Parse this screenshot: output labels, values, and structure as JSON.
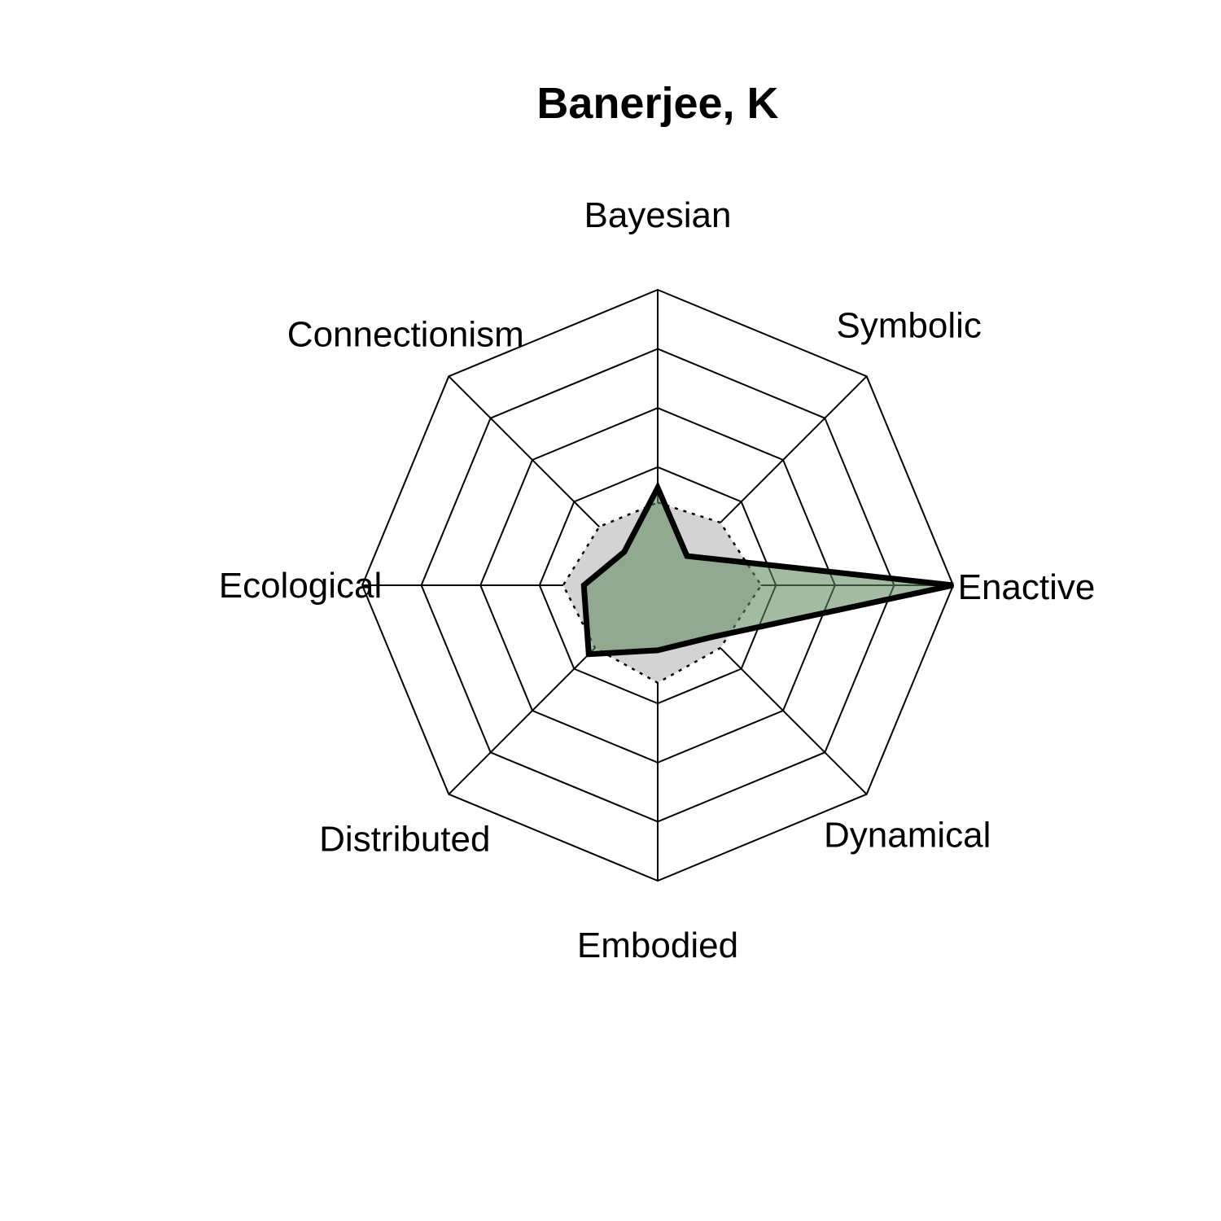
{
  "chart_data": {
    "type": "radar",
    "title": "Banerjee, K",
    "axes": [
      "Bayesian",
      "Symbolic",
      "Enactive",
      "Dynamical",
      "Embodied",
      "Distributed",
      "Ecological",
      "Connectionism"
    ],
    "rmax": 1,
    "grid_levels": 5,
    "grid": true,
    "series": [
      {
        "role": "reference",
        "values": [
          0.28,
          0.3,
          0.35,
          0.3,
          0.33,
          0.3,
          0.32,
          0.28
        ],
        "fill": "#d3d3d3",
        "stroke": "#000000",
        "line_style": "dotted"
      },
      {
        "role": "subject",
        "values": [
          0.33,
          0.14,
          1.0,
          0.25,
          0.22,
          0.33,
          0.25,
          0.16
        ],
        "fill": "#5e8a5e",
        "fill_opacity": 0.58,
        "stroke": "#000000",
        "line_style": "solid"
      }
    ]
  }
}
